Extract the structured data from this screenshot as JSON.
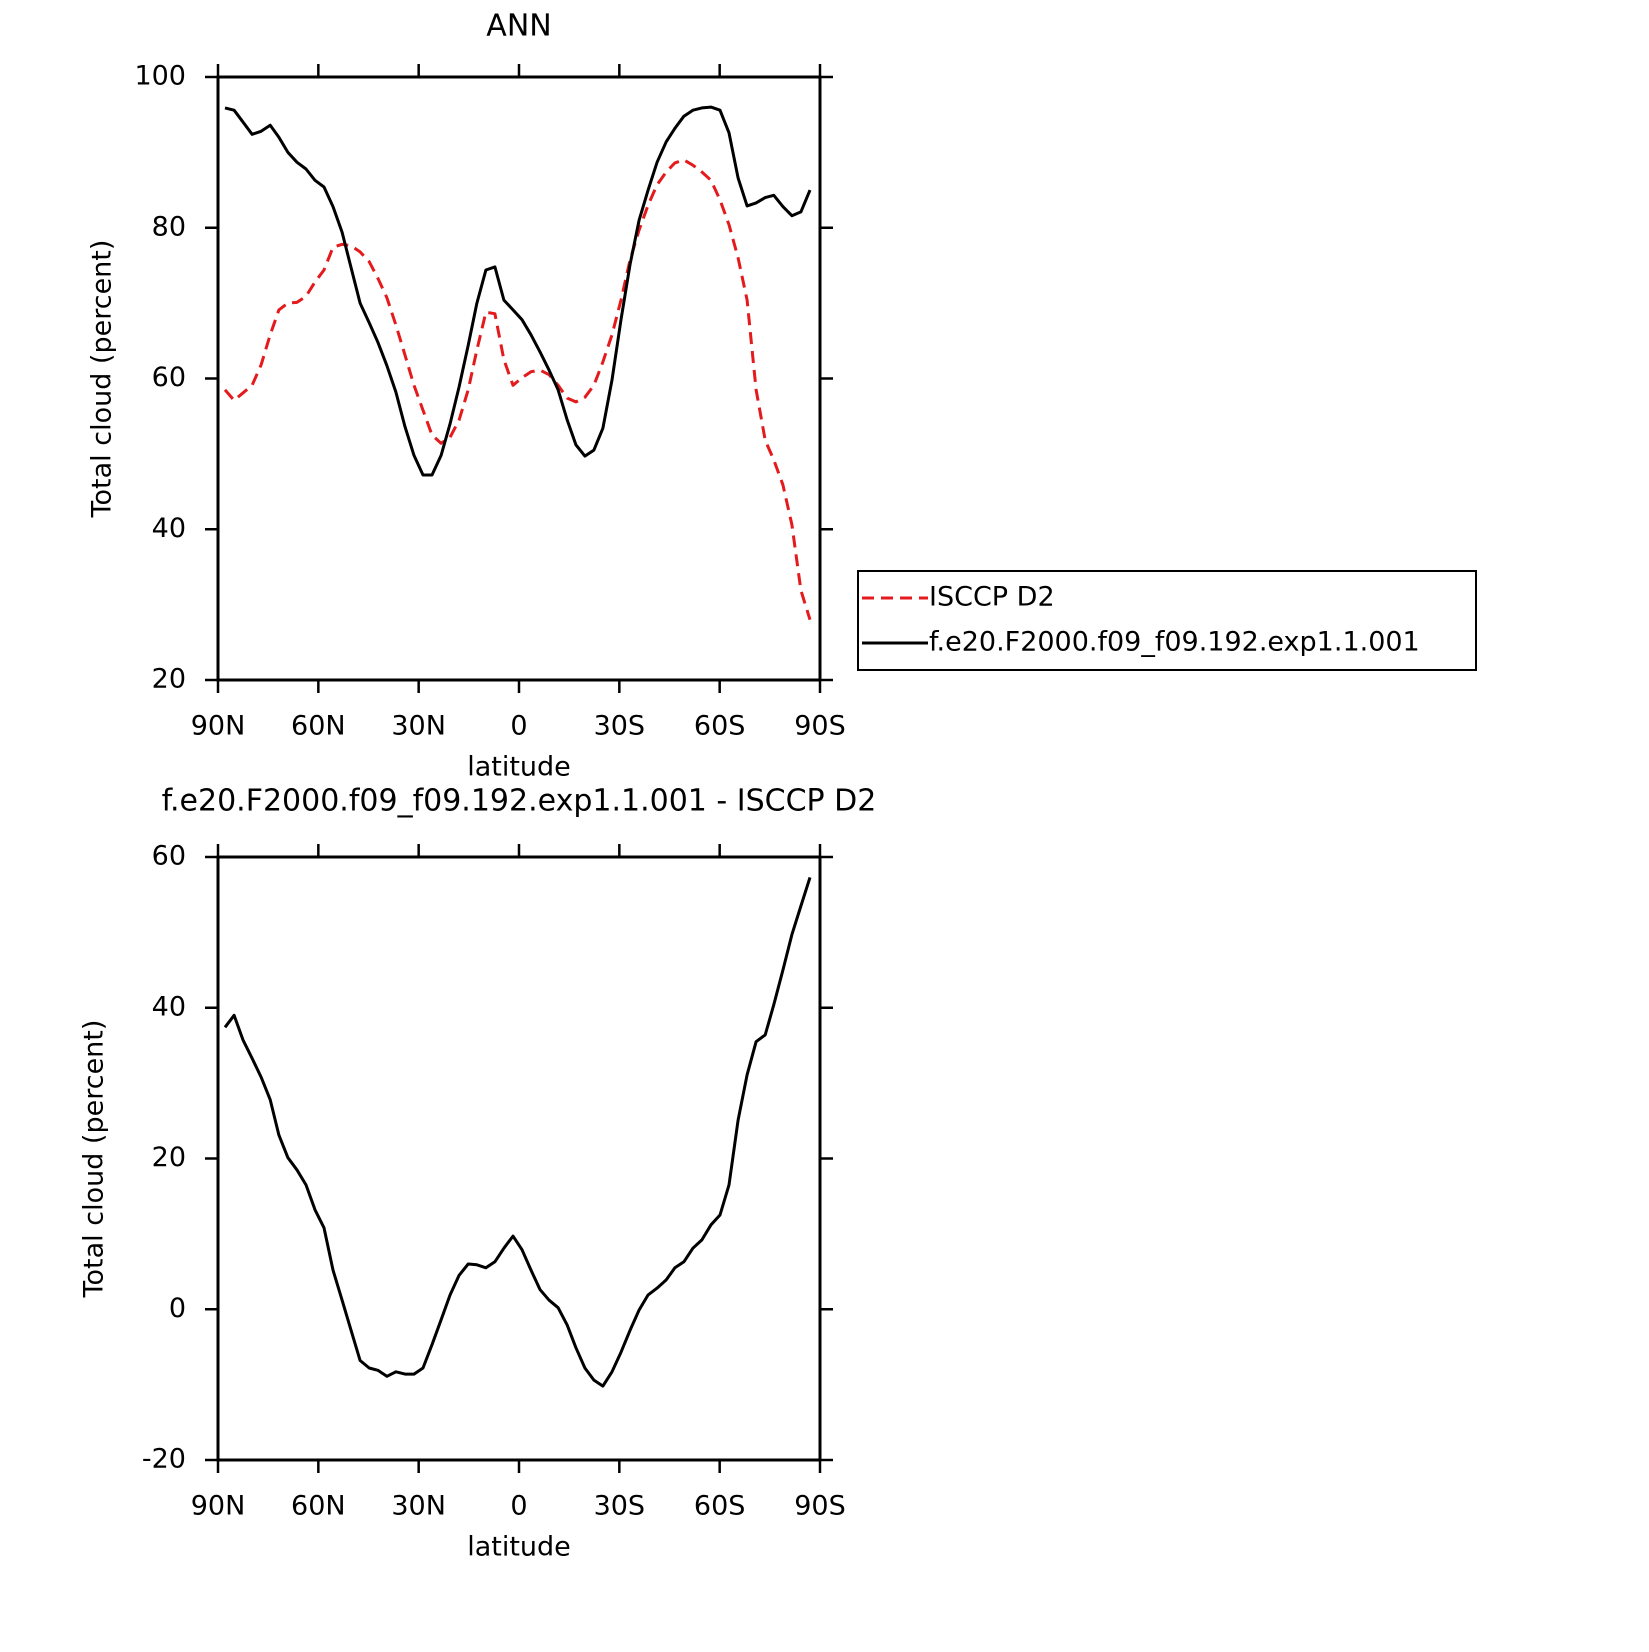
{
  "chart_data": [
    {
      "type": "line",
      "title": "ANN",
      "xlabel": "latitude",
      "ylabel": "Total cloud (percent)",
      "x": [
        87.9,
        85.2,
        82.5,
        79.8,
        77.1,
        74.4,
        71.8,
        69.1,
        66.4,
        63.7,
        61.0,
        58.3,
        55.6,
        52.9,
        50.2,
        47.5,
        44.8,
        42.2,
        39.5,
        36.8,
        34.1,
        31.4,
        28.7,
        26.0,
        23.3,
        20.6,
        17.9,
        15.2,
        12.6,
        9.9,
        7.2,
        4.5,
        1.8,
        -0.9,
        -3.6,
        -6.3,
        -9.0,
        -11.7,
        -14.4,
        -17.0,
        -19.7,
        -22.4,
        -25.1,
        -27.8,
        -30.5,
        -33.2,
        -35.9,
        -38.6,
        -41.3,
        -44.0,
        -46.6,
        -49.3,
        -52.0,
        -54.7,
        -57.4,
        -60.1,
        -62.8,
        -65.5,
        -68.2,
        -70.9,
        -73.6,
        -76.2,
        -78.9,
        -81.6,
        -84.3,
        -87.0
      ],
      "series": [
        {
          "name": "ISCCP D2",
          "color": "#e41a1c",
          "dash": "dashed",
          "values": [
            58.5,
            57.1,
            58.1,
            59.1,
            61.8,
            65.8,
            69.1,
            70.0,
            70.1,
            70.9,
            72.8,
            74.4,
            77.4,
            77.8,
            77.6,
            76.8,
            75.5,
            73.3,
            70.7,
            67.1,
            63.1,
            59.1,
            55.8,
            52.5,
            51.4,
            52.2,
            54.5,
            58.5,
            63.8,
            68.8,
            68.6,
            62.5,
            59.1,
            60.1,
            60.9,
            61.1,
            60.5,
            59.1,
            57.4,
            56.9,
            57.5,
            59.1,
            62.2,
            65.8,
            70.4,
            75.7,
            79.7,
            83.0,
            85.7,
            87.4,
            88.6,
            89.0,
            88.3,
            87.4,
            86.3,
            83.7,
            80.4,
            76.0,
            70.4,
            58.5,
            51.8,
            49.2,
            45.9,
            40.6,
            31.9,
            28.0
          ]
        },
        {
          "name": "f.e20.F2000.f09_f09.192.exp1.1.001",
          "color": "#000000",
          "dash": "solid",
          "values": [
            95.9,
            95.6,
            94.0,
            92.4,
            92.8,
            93.6,
            92.0,
            90.0,
            88.7,
            87.8,
            86.3,
            85.4,
            82.8,
            79.4,
            74.7,
            70.0,
            67.4,
            64.8,
            61.7,
            58.2,
            53.6,
            49.8,
            47.2,
            47.2,
            49.8,
            54.0,
            58.9,
            64.4,
            70.0,
            74.4,
            74.8,
            70.4,
            69.1,
            67.8,
            65.8,
            63.5,
            61.1,
            58.5,
            54.5,
            51.2,
            49.7,
            50.5,
            53.4,
            59.8,
            67.8,
            75.1,
            81.0,
            85.0,
            88.7,
            91.4,
            93.2,
            94.8,
            95.6,
            95.9,
            96.0,
            95.6,
            92.6,
            86.6,
            82.9,
            83.3,
            84.0,
            84.3,
            82.8,
            81.6,
            82.1,
            85.0
          ]
        }
      ],
      "xlim": [
        90,
        -90
      ],
      "xticks": [
        {
          "value": 90,
          "label": "90N"
        },
        {
          "value": 60,
          "label": "60N"
        },
        {
          "value": 30,
          "label": "30N"
        },
        0,
        {
          "value": -30,
          "label": "30S"
        },
        {
          "value": -60,
          "label": "60S"
        },
        {
          "value": -90,
          "label": "90S"
        }
      ],
      "ylim": [
        20,
        100
      ],
      "yticks": [
        20,
        40,
        60,
        80,
        100
      ],
      "legend": "right"
    },
    {
      "type": "line",
      "title": "f.e20.F2000.f09_f09.192.exp1.1.001 - ISCCP D2",
      "xlabel": "latitude",
      "ylabel": "Total cloud (percent)",
      "x": [
        87.9,
        85.2,
        82.5,
        79.8,
        77.1,
        74.4,
        71.8,
        69.1,
        66.4,
        63.7,
        61.0,
        58.3,
        55.6,
        52.9,
        50.2,
        47.5,
        44.8,
        42.2,
        39.5,
        36.8,
        34.1,
        31.4,
        28.7,
        26.0,
        23.3,
        20.6,
        17.9,
        15.2,
        12.6,
        9.9,
        7.2,
        4.5,
        1.8,
        -0.9,
        -3.6,
        -6.3,
        -9.0,
        -11.7,
        -14.4,
        -17.0,
        -19.7,
        -22.4,
        -25.1,
        -27.8,
        -30.5,
        -33.2,
        -35.9,
        -38.6,
        -41.3,
        -44.0,
        -46.6,
        -49.3,
        -52.0,
        -54.7,
        -57.4,
        -60.1,
        -62.8,
        -65.5,
        -68.2,
        -70.9,
        -73.6,
        -76.2,
        -78.9,
        -81.6,
        -84.3,
        -87.0
      ],
      "color": "#000000",
      "values": [
        37.4,
        39.0,
        35.7,
        33.3,
        30.8,
        27.8,
        23.1,
        20.1,
        18.5,
        16.5,
        13.2,
        10.8,
        5.2,
        1.2,
        -2.8,
        -6.8,
        -7.8,
        -8.1,
        -8.9,
        -8.3,
        -8.6,
        -8.6,
        -7.8,
        -4.7,
        -1.4,
        1.9,
        4.5,
        6.0,
        5.9,
        5.5,
        6.3,
        8.1,
        9.7,
        7.9,
        5.2,
        2.6,
        1.2,
        0.2,
        -2.1,
        -5.1,
        -7.8,
        -9.4,
        -10.2,
        -8.3,
        -5.7,
        -2.8,
        -0.1,
        1.9,
        2.8,
        3.9,
        5.5,
        6.3,
        8.1,
        9.2,
        11.2,
        12.5,
        16.5,
        25.1,
        31.1,
        35.5,
        36.4,
        40.4,
        45.0,
        49.7,
        53.5,
        57.3
      ],
      "xlim": [
        90,
        -90
      ],
      "xticks": [
        {
          "value": 90,
          "label": "90N"
        },
        {
          "value": 60,
          "label": "60N"
        },
        {
          "value": 30,
          "label": "30N"
        },
        0,
        {
          "value": -30,
          "label": "30S"
        },
        {
          "value": -60,
          "label": "60S"
        },
        {
          "value": -90,
          "label": "90S"
        }
      ],
      "ylim": [
        -20,
        60
      ],
      "yticks": [
        -20,
        0,
        20,
        40,
        60
      ]
    }
  ]
}
